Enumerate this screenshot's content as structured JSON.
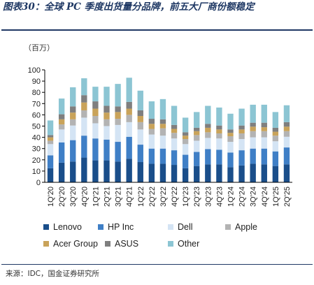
{
  "figure": {
    "title": "图表30：全球 PC 季度出货量分品牌，前五大厂商份额稳定",
    "unit_label": "（百万）",
    "source": "来源：IDC，国金证券研究所"
  },
  "chart_data": {
    "type": "bar",
    "stacked": true,
    "categories": [
      "1Q'20",
      "2Q'20",
      "3Q'20",
      "4Q'20",
      "1Q'21",
      "2Q'21",
      "3Q'21",
      "4Q'21",
      "1Q'22",
      "2Q'22",
      "3Q'22",
      "4Q'22",
      "1Q'23",
      "2Q'23",
      "3Q'23",
      "4Q'23",
      "1Q'24",
      "2Q'24",
      "3Q'24",
      "4Q'24",
      "1Q'25",
      "2Q'25"
    ],
    "ylim": [
      0,
      100
    ],
    "yticks": [
      0,
      10,
      20,
      30,
      40,
      50,
      60,
      70,
      80,
      90,
      100
    ],
    "grid": false,
    "legend_position": "bottom",
    "series": [
      {
        "name": "Lenovo",
        "color": "#1a4e8a",
        "values": [
          12.5,
          17.5,
          18.5,
          22.0,
          19.5,
          19.5,
          18.5,
          21.0,
          18.0,
          16.5,
          16.5,
          15.5,
          12.5,
          14.5,
          16.0,
          16.0,
          13.5,
          15.0,
          16.5,
          16.0,
          14.5,
          16.0
        ]
      },
      {
        "name": "HP Inc",
        "color": "#3f7fc6",
        "values": [
          11.5,
          18.0,
          19.0,
          19.5,
          19.5,
          18.5,
          17.5,
          19.5,
          15.5,
          13.5,
          13.5,
          13.0,
          12.0,
          12.5,
          13.5,
          13.0,
          13.0,
          13.5,
          13.5,
          14.0,
          13.0,
          15.0
        ]
      },
      {
        "name": "Dell",
        "color": "#d4e4f4",
        "values": [
          10.0,
          11.5,
          13.0,
          16.0,
          13.5,
          12.0,
          15.0,
          13.0,
          13.5,
          12.5,
          11.5,
          10.5,
          9.5,
          10.0,
          10.0,
          10.0,
          9.5,
          10.0,
          10.0,
          10.0,
          9.0,
          9.5
        ]
      },
      {
        "name": "Apple",
        "color": "#b3b3b3",
        "values": [
          3.0,
          4.5,
          5.5,
          6.5,
          6.5,
          6.0,
          5.5,
          6.5,
          6.5,
          5.0,
          6.5,
          5.0,
          4.5,
          5.0,
          5.0,
          4.5,
          5.0,
          5.0,
          5.5,
          5.5,
          5.0,
          5.0
        ]
      },
      {
        "name": "Acer Group",
        "color": "#c9a35a",
        "values": [
          3.0,
          4.5,
          6.0,
          7.0,
          6.5,
          6.0,
          6.0,
          5.5,
          5.5,
          4.5,
          4.0,
          3.5,
          3.0,
          3.5,
          4.0,
          3.5,
          3.0,
          3.5,
          4.0,
          3.5,
          3.5,
          4.0
        ]
      },
      {
        "name": "ASUS",
        "color": "#7f7f7f",
        "values": [
          2.0,
          4.5,
          5.5,
          6.5,
          6.5,
          6.0,
          5.0,
          6.0,
          5.0,
          4.5,
          4.0,
          3.5,
          3.0,
          3.0,
          3.5,
          3.5,
          3.0,
          3.5,
          3.5,
          4.0,
          3.5,
          4.0
        ]
      },
      {
        "name": "Other",
        "color": "#8cc5d3",
        "values": [
          13.0,
          14.0,
          17.0,
          15.0,
          13.0,
          17.0,
          20.0,
          21.5,
          17.5,
          15.5,
          18.0,
          17.0,
          13.0,
          14.0,
          16.0,
          16.0,
          14.0,
          15.0,
          16.0,
          16.0,
          14.0,
          15.0
        ]
      }
    ]
  }
}
